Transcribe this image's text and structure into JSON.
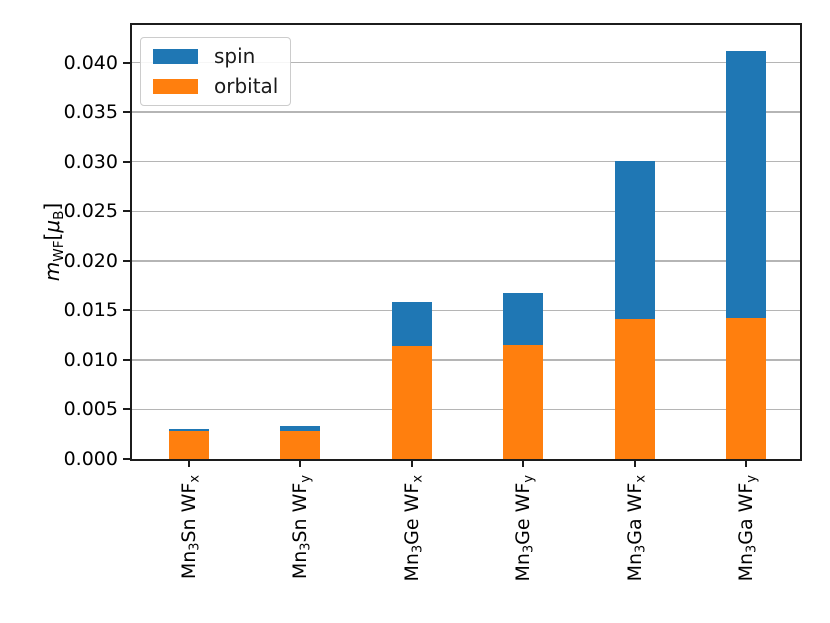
{
  "figure": {
    "background": "#ffffff",
    "frame_color": "#1c1c1c"
  },
  "chart_data": {
    "type": "bar",
    "stacked": true,
    "title": "",
    "xlabel": "",
    "ylabel": "m_WF[u_B]",
    "ylabel_segments": [
      {
        "t": "m",
        "italic": true
      },
      {
        "t": "WF",
        "sub": true
      },
      {
        "t": "["
      },
      {
        "t": "μ",
        "italic": true
      },
      {
        "t": "B",
        "sub": true
      },
      {
        "t": "]"
      }
    ],
    "categories": [
      "Mn3Sn WFx",
      "Mn3Sn WFy",
      "Mn3Ge WFx",
      "Mn3Ge WFy",
      "Mn3Ga WFx",
      "Mn3Ga WFy"
    ],
    "category_segments": [
      [
        {
          "t": "Mn"
        },
        {
          "t": "3",
          "sub": true
        },
        {
          "t": "Sn WF"
        },
        {
          "t": "x",
          "sub": true
        }
      ],
      [
        {
          "t": "Mn"
        },
        {
          "t": "3",
          "sub": true
        },
        {
          "t": "Sn WF"
        },
        {
          "t": "y",
          "sub": true
        }
      ],
      [
        {
          "t": "Mn"
        },
        {
          "t": "3",
          "sub": true
        },
        {
          "t": "Ge WF"
        },
        {
          "t": "x",
          "sub": true
        }
      ],
      [
        {
          "t": "Mn"
        },
        {
          "t": "3",
          "sub": true
        },
        {
          "t": "Ge WF"
        },
        {
          "t": "y",
          "sub": true
        }
      ],
      [
        {
          "t": "Mn"
        },
        {
          "t": "3",
          "sub": true
        },
        {
          "t": "Ga WF"
        },
        {
          "t": "x",
          "sub": true
        }
      ],
      [
        {
          "t": "Mn"
        },
        {
          "t": "3",
          "sub": true
        },
        {
          "t": "Ga WF"
        },
        {
          "t": "y",
          "sub": true
        }
      ]
    ],
    "series": [
      {
        "name": "spin",
        "color": "#1f77b4",
        "values": [
          0.0002,
          0.0005,
          0.0044,
          0.0053,
          0.016,
          0.027
        ]
      },
      {
        "name": "orbital",
        "color": "#ff7f0e",
        "values": [
          0.0028,
          0.0028,
          0.0114,
          0.0115,
          0.0141,
          0.0142
        ]
      }
    ],
    "stack_order_bottom_to_top": [
      "orbital",
      "spin"
    ],
    "totals": [
      0.003,
      0.0033,
      0.0158,
      0.0168,
      0.0301,
      0.0412
    ],
    "ylim": [
      0,
      0.0438
    ],
    "yticks": {
      "values": [
        0,
        0.005,
        0.01,
        0.015,
        0.02,
        0.025,
        0.03,
        0.035,
        0.04
      ],
      "labels": [
        "0.000",
        "0.005",
        "0.010",
        "0.015",
        "0.020",
        "0.025",
        "0.030",
        "0.035",
        "0.040"
      ]
    },
    "grid": {
      "visible": true,
      "axis": "y",
      "color": "#b5b5b5"
    },
    "legend": {
      "position": "upper-left",
      "entries": [
        {
          "label": "spin",
          "color": "#1f77b4"
        },
        {
          "label": "orbital",
          "color": "#ff7f0e"
        }
      ]
    }
  }
}
